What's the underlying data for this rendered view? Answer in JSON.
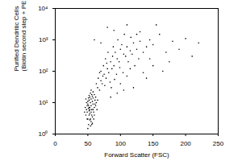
{
  "chart_data": {
    "type": "scatter",
    "xlabel": "Forward Scatter (FSC)",
    "ylabel": "Purified Dendritic Cells\n(Biotin second step + PE streptavidin)",
    "log": "y",
    "color": "#000000",
    "xlim": [
      0,
      250
    ],
    "xticks": [
      0,
      50,
      100,
      150,
      200,
      250
    ],
    "ylim": [
      1,
      10000
    ],
    "yticks": [
      {
        "value": 1,
        "label": "10⁰"
      },
      {
        "value": 10,
        "label": "10¹"
      },
      {
        "value": 100,
        "label": "10²"
      },
      {
        "value": 1000,
        "label": "10³"
      },
      {
        "value": 10000,
        "label": "10⁴"
      }
    ],
    "x": [
      50,
      52,
      55,
      48,
      53,
      57,
      51,
      54,
      49,
      56,
      58,
      52,
      47,
      55,
      60,
      53,
      50,
      57,
      51,
      54,
      59,
      46,
      56,
      62,
      53,
      55,
      48,
      58,
      52,
      61,
      50,
      54,
      57,
      49,
      63,
      51,
      56,
      53,
      59,
      55,
      45,
      60,
      52,
      58,
      64,
      50,
      54,
      57,
      49,
      62,
      47,
      61,
      56,
      53,
      65,
      51,
      58,
      60,
      55,
      52,
      65,
      70,
      68,
      75,
      72,
      80,
      78,
      85,
      82,
      90,
      88,
      95,
      76,
      70,
      66,
      92,
      100,
      98,
      105,
      110,
      84,
      73,
      79,
      87,
      94,
      102,
      108,
      115,
      120,
      96,
      89,
      77,
      81,
      74,
      68,
      63,
      86,
      91,
      99,
      104,
      112,
      118,
      125,
      130,
      135,
      140,
      128,
      122,
      116,
      106,
      90,
      110,
      130,
      150,
      160,
      145,
      170,
      180,
      200,
      155,
      175,
      190,
      140,
      165,
      210,
      220,
      60,
      70,
      80,
      100,
      120,
      135,
      150,
      125,
      95,
      105,
      85,
      110,
      115,
      145
    ],
    "values": [
      3,
      4,
      5,
      6,
      7,
      3.5,
      8,
      10,
      5,
      6,
      9,
      12,
      4,
      2.5,
      7,
      15,
      9,
      11,
      2,
      3,
      5,
      7,
      4,
      8,
      6,
      13,
      10,
      6,
      5.5,
      12,
      1.5,
      1.8,
      2.2,
      3,
      10,
      14,
      18,
      4.5,
      3,
      8,
      5,
      4,
      7,
      14,
      6,
      11,
      20,
      16,
      8,
      15,
      13,
      9,
      2,
      2.8,
      12,
      6.5,
      22,
      18,
      25,
      17,
      30,
      50,
      25,
      80,
      40,
      120,
      60,
      200,
      90,
      150,
      300,
      250,
      35,
      100,
      60,
      400,
      500,
      200,
      350,
      600,
      45,
      70,
      180,
      120,
      80,
      700,
      300,
      450,
      800,
      1000,
      600,
      250,
      400,
      150,
      90,
      40,
      30,
      55,
      130,
      90,
      200,
      350,
      500,
      900,
      400,
      600,
      250,
      150,
      1200,
      1500,
      2000,
      3000,
      1800,
      700,
      1500,
      250,
      400,
      900,
      1100,
      3000,
      200,
      500,
      60,
      100,
      300,
      800,
      1000,
      800,
      2500,
      40,
      30,
      90,
      150,
      1500,
      20,
      25,
      15,
      70,
      120,
      1000
    ]
  }
}
